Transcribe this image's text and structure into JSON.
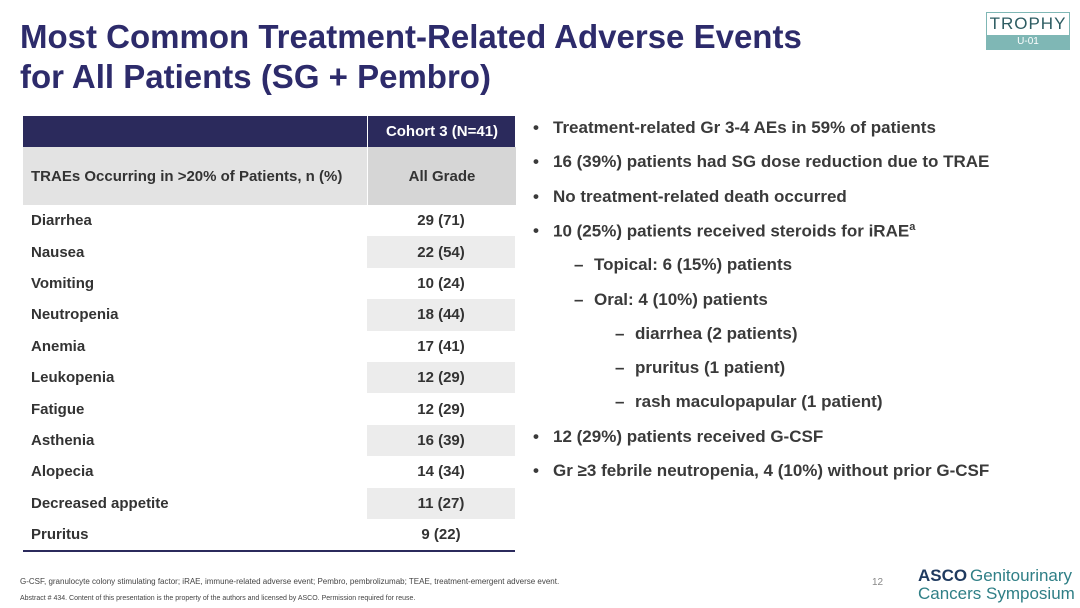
{
  "title": [
    "Most Common Treatment-Related Adverse Events",
    "for All Patients (SG + Pembro)"
  ],
  "logo": {
    "name": "TROPHY",
    "study": "U-01"
  },
  "table": {
    "group_header": "Cohort 3 (N=41)",
    "columns": [
      "TRAEs Occurring in >20% of Patients, n (%)",
      "All Grade"
    ],
    "rows": [
      [
        "Diarrhea",
        "29 (71)"
      ],
      [
        "Nausea",
        "22 (54)"
      ],
      [
        "Vomiting",
        "10 (24)"
      ],
      [
        "Neutropenia",
        "18 (44)"
      ],
      [
        "Anemia",
        "17 (41)"
      ],
      [
        "Leukopenia",
        "12 (29)"
      ],
      [
        "Fatigue",
        "12 (29)"
      ],
      [
        "Asthenia",
        "16 (39)"
      ],
      [
        "Alopecia",
        "14 (34)"
      ],
      [
        "Decreased appetite",
        "11 (27)"
      ],
      [
        "Pruritus",
        "9 (22)"
      ]
    ]
  },
  "bullets": [
    {
      "level": 0,
      "text": "Treatment-related Gr 3-4 AEs in 59% of patients"
    },
    {
      "level": 0,
      "text": "16 (39%) patients had SG dose reduction due to TRAE"
    },
    {
      "level": 0,
      "text": "No treatment-related death occurred"
    },
    {
      "level": 0,
      "text": "10 (25%) patients received steroids for iRAE",
      "superscript": "a"
    },
    {
      "level": 1,
      "text": "Topical: 6 (15%) patients"
    },
    {
      "level": 1,
      "text": "Oral: 4 (10%) patients"
    },
    {
      "level": 2,
      "text": "diarrhea (2 patients)"
    },
    {
      "level": 2,
      "text": "pruritus (1 patient)"
    },
    {
      "level": 2,
      "text": "rash maculopapular (1 patient)"
    },
    {
      "level": 0,
      "text": "12 (29%) patients received G-CSF"
    },
    {
      "level": 0,
      "text": "Gr ≥3 febrile neutropenia, 4 (10%) without prior G-CSF"
    }
  ],
  "footer": {
    "footnote": "G-CSF, granulocyte colony stimulating factor; iRAE, immune-related adverse event; Pembro, pembrolizumab; TEAE, treatment-emergent adverse event.",
    "abstract": "Abstract # 434. Content of this presentation is the property of the authors and licensed by ASCO. Permission required for reuse.",
    "page": "12",
    "brand": "ASCO",
    "meeting_1": "Genitourinary",
    "meeting_2": "Cancers Symposium"
  }
}
